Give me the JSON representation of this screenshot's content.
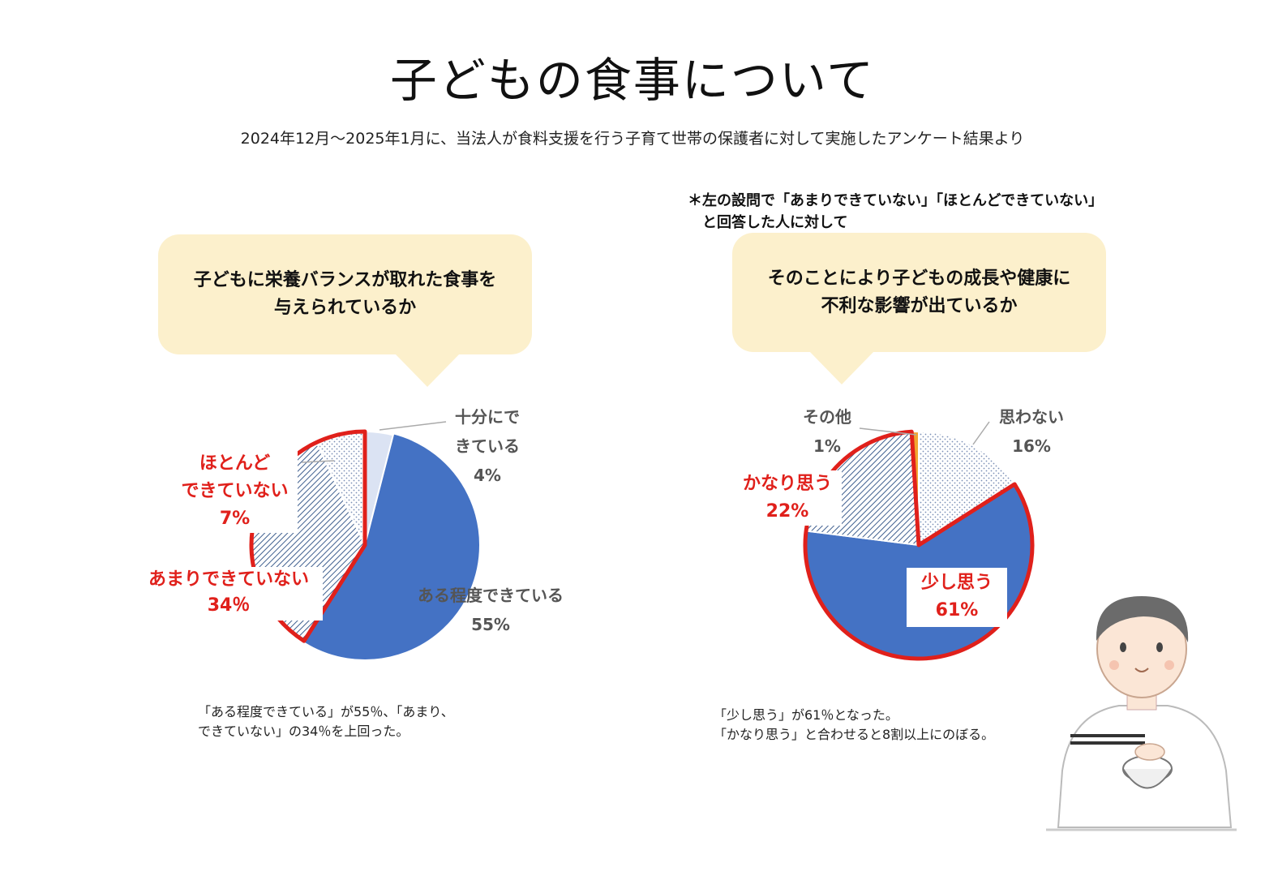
{
  "header": {
    "title": "子どもの食事について",
    "subtitle": "2024年12月～2025年1月に、当法人が食料支援を行う子育て世帯の保護者に対して実施したアンケート結果より"
  },
  "note": {
    "line1": "＊左の設問で「あまりできていない」「ほとんどできていない」",
    "line2": "と回答した人に対して"
  },
  "left": {
    "question_line1": "子どもに栄養バランスが取れた食事を",
    "question_line2": "与えられているか",
    "caption_line1": "「ある程度できている」が55％、「あまり、",
    "caption_line2": "できていない」の34％を上回った。",
    "labels": {
      "fully_line1": "十分にで",
      "fully_line2": "きている",
      "fully_pct": "4%",
      "somewhat": "ある程度できている",
      "somewhat_pct": "55%",
      "notmuch": "あまりできていない",
      "notmuch_pct": "34％",
      "barely_line1": "ほとんど",
      "barely_line2": "できていない",
      "barely_pct": "7%"
    }
  },
  "right": {
    "question_line1": "そのことにより子どもの成長や健康に",
    "question_line2": "不利な影響が出ているか",
    "caption_line1": "「少し思う」が61％となった。",
    "caption_line2": "「かなり思う」と合わせると8割以上にのぼる。",
    "labels": {
      "no": "思わない",
      "no_pct": "16%",
      "little": "少し思う",
      "little_pct": "61%",
      "quite": "かなり思う",
      "quite_pct": "22%",
      "other": "その他",
      "other_pct": "1%"
    }
  },
  "colors": {
    "blue": "#4472c4",
    "red": "#e0201b",
    "light_blue": "#dbe3f3",
    "bubble": "#fcf0cc",
    "hatch": "#3f5f8f"
  },
  "chart_data": [
    {
      "type": "pie",
      "title": "子どもに栄養バランスが取れた食事を与えられているか",
      "categories": [
        "十分にできている",
        "ある程度できている",
        "あまりできていない",
        "ほとんどできていない"
      ],
      "values": [
        4,
        55,
        34,
        7
      ],
      "unit": "%",
      "highlighted": [
        "あまりできていない",
        "ほとんどできていない"
      ]
    },
    {
      "type": "pie",
      "title": "そのことにより子どもの成長や健康に不利な影響が出ているか",
      "categories": [
        "思わない",
        "少し思う",
        "かなり思う",
        "その他"
      ],
      "values": [
        16,
        61,
        22,
        1
      ],
      "unit": "%",
      "highlighted": [
        "少し思う",
        "かなり思う"
      ]
    }
  ]
}
